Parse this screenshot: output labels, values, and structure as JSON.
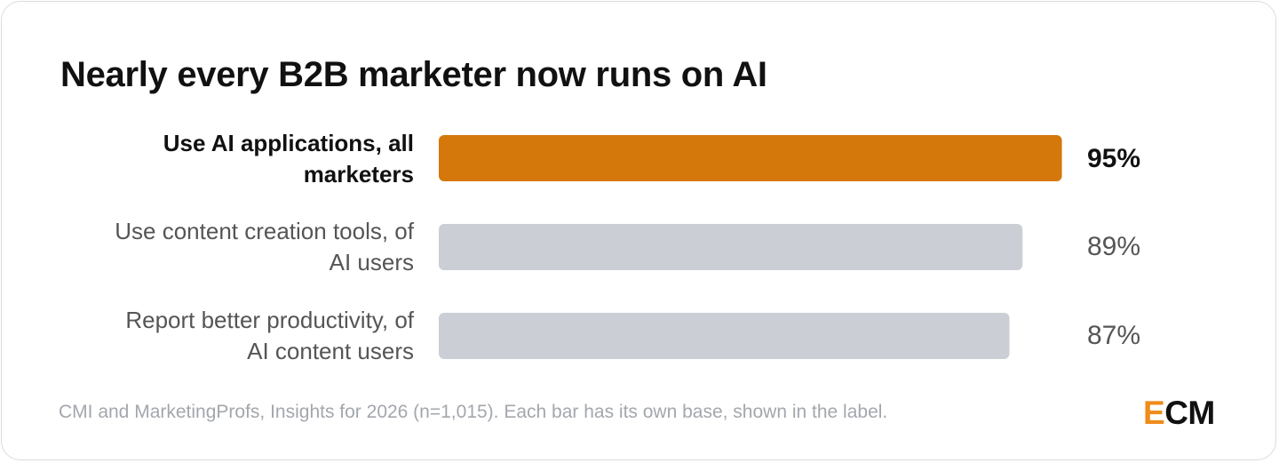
{
  "chart_data": {
    "type": "bar",
    "orientation": "horizontal",
    "title": "Nearly every B2B marketer now runs on AI",
    "categories": [
      "Use AI applications, all marketers",
      "Use content creation tools, of AI users",
      "Report better productivity, of AI content users"
    ],
    "label_lines": [
      [
        "Use AI applications, all",
        "marketers"
      ],
      [
        "Use content creation tools, of",
        "AI users"
      ],
      [
        "Report better productivity, of",
        "AI content users"
      ]
    ],
    "values": [
      95,
      89,
      87
    ],
    "value_labels": [
      "95%",
      "89%",
      "87%"
    ],
    "unit": "%",
    "xlim": [
      0,
      100
    ],
    "highlight_index": 0,
    "colors": {
      "highlight": "#d4780b",
      "default": "#cbced5"
    },
    "grid": false,
    "legend": "none"
  },
  "footer": {
    "source": "CMI and MarketingProfs, Insights for 2026 (n=1,015). Each bar has its own base, shown in the label.",
    "logo_e": "E",
    "logo_cm": "CM"
  }
}
